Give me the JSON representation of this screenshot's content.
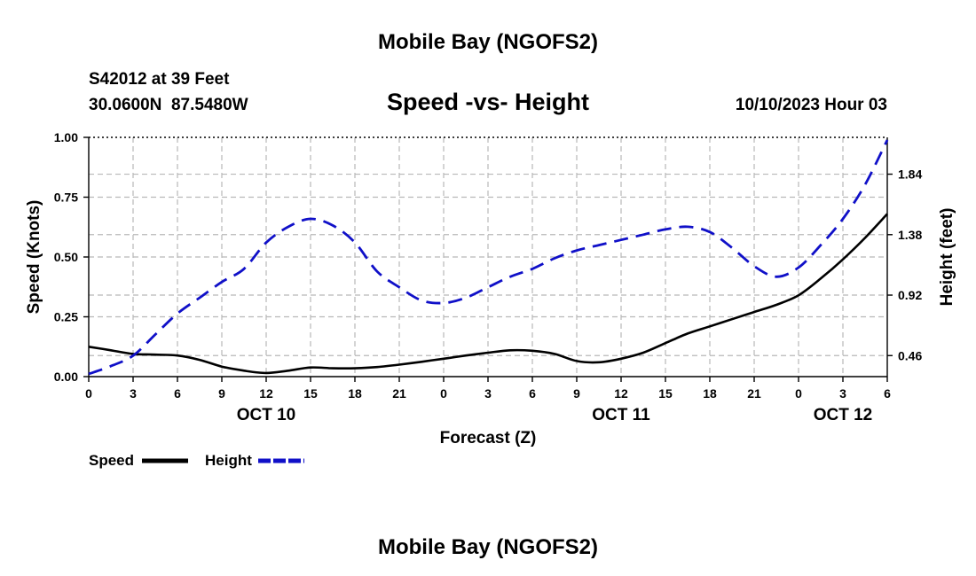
{
  "page": {
    "title_top": "Mobile Bay (NGOFS2)",
    "title_bottom": "Mobile Bay (NGOFS2)",
    "station": "S42012 at 39 Feet",
    "coords": "30.0600N  87.5480W",
    "subtitle": "Speed -vs- Height",
    "datetime": "10/10/2023 Hour 03"
  },
  "colors": {
    "speed": "#000000",
    "height": "#1010c8",
    "grid": "#b8b8b8"
  },
  "chart_data": {
    "type": "line",
    "title": "Speed -vs- Height",
    "xlabel": "Forecast (Z)",
    "ylabel": "Speed (Knots)",
    "y2label": "Height (feet)",
    "xlim": [
      0,
      54
    ],
    "ylim": [
      0,
      1.0
    ],
    "y2lim": [
      0.3,
      2.12
    ],
    "x_ticks": [
      0,
      3,
      6,
      9,
      12,
      15,
      18,
      21,
      24,
      27,
      30,
      33,
      36,
      39,
      42,
      45,
      48,
      51,
      54
    ],
    "x_tick_labels": [
      "0",
      "3",
      "6",
      "9",
      "12",
      "15",
      "18",
      "21",
      "0",
      "3",
      "6",
      "9",
      "12",
      "15",
      "18",
      "21",
      "0",
      "3",
      "6"
    ],
    "date_labels": [
      {
        "label": "OCT 10",
        "x": 12
      },
      {
        "label": "OCT 11",
        "x": 36
      },
      {
        "label": "OCT 12",
        "x": 51
      }
    ],
    "y_ticks": [
      0.0,
      0.25,
      0.5,
      0.75,
      1.0
    ],
    "y_tick_labels": [
      "0.00",
      "0.25",
      "0.50",
      "0.75",
      "1.00"
    ],
    "y2_ticks": [
      0.46,
      0.92,
      1.38,
      1.84
    ],
    "y2_tick_labels": [
      "0.46",
      "0.92",
      "1.38",
      "1.84"
    ],
    "grid": true,
    "legend_position": "bottom-left",
    "series": [
      {
        "name": "Speed",
        "axis": "left",
        "x": [
          0,
          1.5,
          3,
          4.5,
          6,
          7.5,
          9,
          10.5,
          12,
          13.5,
          15,
          16.5,
          18,
          19.5,
          21,
          22.5,
          24,
          25.5,
          27,
          28.5,
          30,
          31.5,
          33,
          34.5,
          36,
          37.5,
          39,
          40.5,
          42,
          43.5,
          45,
          46.5,
          48,
          49.5,
          51,
          52.5,
          54
        ],
        "values": [
          0.125,
          0.11,
          0.095,
          0.092,
          0.088,
          0.07,
          0.042,
          0.025,
          0.015,
          0.025,
          0.038,
          0.035,
          0.035,
          0.04,
          0.05,
          0.062,
          0.075,
          0.088,
          0.1,
          0.11,
          0.108,
          0.095,
          0.065,
          0.06,
          0.075,
          0.1,
          0.14,
          0.18,
          0.21,
          0.24,
          0.27,
          0.3,
          0.34,
          0.41,
          0.49,
          0.58,
          0.68
        ]
      },
      {
        "name": "Height",
        "axis": "right",
        "x": [
          0,
          1.5,
          3,
          4.5,
          6,
          7.5,
          9,
          10.5,
          12,
          13.5,
          15,
          16.5,
          18,
          19.5,
          21,
          22.5,
          24,
          25.5,
          27,
          28.5,
          30,
          31.5,
          33,
          34.5,
          36,
          37.5,
          39,
          40.5,
          42,
          43.5,
          45,
          46.5,
          48,
          49.5,
          51,
          52.5,
          54
        ],
        "values": [
          0.32,
          0.38,
          0.46,
          0.62,
          0.78,
          0.9,
          1.02,
          1.12,
          1.32,
          1.44,
          1.5,
          1.45,
          1.32,
          1.1,
          0.98,
          0.88,
          0.86,
          0.9,
          0.98,
          1.06,
          1.12,
          1.2,
          1.26,
          1.3,
          1.34,
          1.38,
          1.42,
          1.44,
          1.4,
          1.28,
          1.14,
          1.06,
          1.13,
          1.3,
          1.5,
          1.76,
          2.1
        ]
      }
    ]
  }
}
